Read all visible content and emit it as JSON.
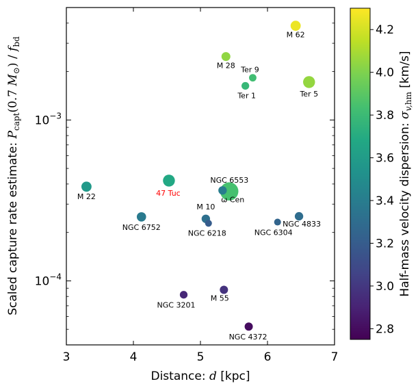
{
  "chart_data": {
    "type": "scatter",
    "xlabel": "Distance: d [kpc]",
    "ylabel": "Scaled capture rate estimate: P_capt(0.7 M⊙) / f_bd",
    "x_scale": "linear",
    "y_scale": "log",
    "xlim": [
      3,
      7
    ],
    "ylim": [
      4e-05,
      0.005
    ],
    "x_ticks": [
      "3",
      "4",
      "5",
      "6",
      "7"
    ],
    "y_ticks": [
      {
        "value": 0.0001,
        "base": "10",
        "exp": "−4"
      },
      {
        "value": 0.001,
        "base": "10",
        "exp": "−3"
      }
    ],
    "colorbar": {
      "label": "Half-mass velocity dispersion: σ_v,hm [km/s]",
      "colormap": "viridis",
      "range": [
        2.75,
        4.3
      ],
      "ticks": [
        "2.8",
        "3.0",
        "3.2",
        "3.4",
        "3.6",
        "3.8",
        "4.0",
        "4.2"
      ]
    },
    "points": [
      {
        "name": "M 62",
        "x": 6.42,
        "y": 0.00385,
        "sigma": 4.26,
        "size": 1.3
      },
      {
        "name": "M 28",
        "x": 5.38,
        "y": 0.00248,
        "sigma": 4.04,
        "size": 1.0
      },
      {
        "name": "Ter 9",
        "x": 5.78,
        "y": 0.00183,
        "sigma": 3.82,
        "size": 0.7
      },
      {
        "name": "Ter 1",
        "x": 5.67,
        "y": 0.00163,
        "sigma": 3.78,
        "size": 0.75
      },
      {
        "name": "Ter 5",
        "x": 6.62,
        "y": 0.00172,
        "sigma": 4.05,
        "size": 1.8
      },
      {
        "name": "47 Tuc",
        "x": 4.53,
        "y": 0.00042,
        "sigma": 3.68,
        "size": 1.8,
        "label_color": "#ff0000"
      },
      {
        "name": "M 22",
        "x": 3.3,
        "y": 0.000385,
        "sigma": 3.58,
        "size": 1.3
      },
      {
        "name": "ω Cen",
        "x": 5.43,
        "y": 0.00036,
        "sigma": 3.84,
        "size": 4.2
      },
      {
        "name": "NGC 6553",
        "x": 5.33,
        "y": 0.000365,
        "sigma": 3.4,
        "size": 0.9
      },
      {
        "name": "NGC 6752",
        "x": 4.12,
        "y": 0.00025,
        "sigma": 3.38,
        "size": 1.1
      },
      {
        "name": "M 10",
        "x": 5.08,
        "y": 0.000243,
        "sigma": 3.32,
        "size": 0.9
      },
      {
        "name": "NGC 6218",
        "x": 5.12,
        "y": 0.000228,
        "sigma": 3.2,
        "size": 0.6
      },
      {
        "name": "NGC 6304",
        "x": 6.15,
        "y": 0.000232,
        "sigma": 3.25,
        "size": 0.6
      },
      {
        "name": "NGC 4833",
        "x": 6.47,
        "y": 0.000252,
        "sigma": 3.3,
        "size": 0.9
      },
      {
        "name": "NGC 3201",
        "x": 4.75,
        "y": 8.2e-05,
        "sigma": 2.92,
        "size": 0.75
      },
      {
        "name": "M 55",
        "x": 5.35,
        "y": 8.8e-05,
        "sigma": 2.98,
        "size": 0.85
      },
      {
        "name": "NGC 4372",
        "x": 5.72,
        "y": 5.2e-05,
        "sigma": 2.8,
        "size": 0.85
      }
    ]
  }
}
